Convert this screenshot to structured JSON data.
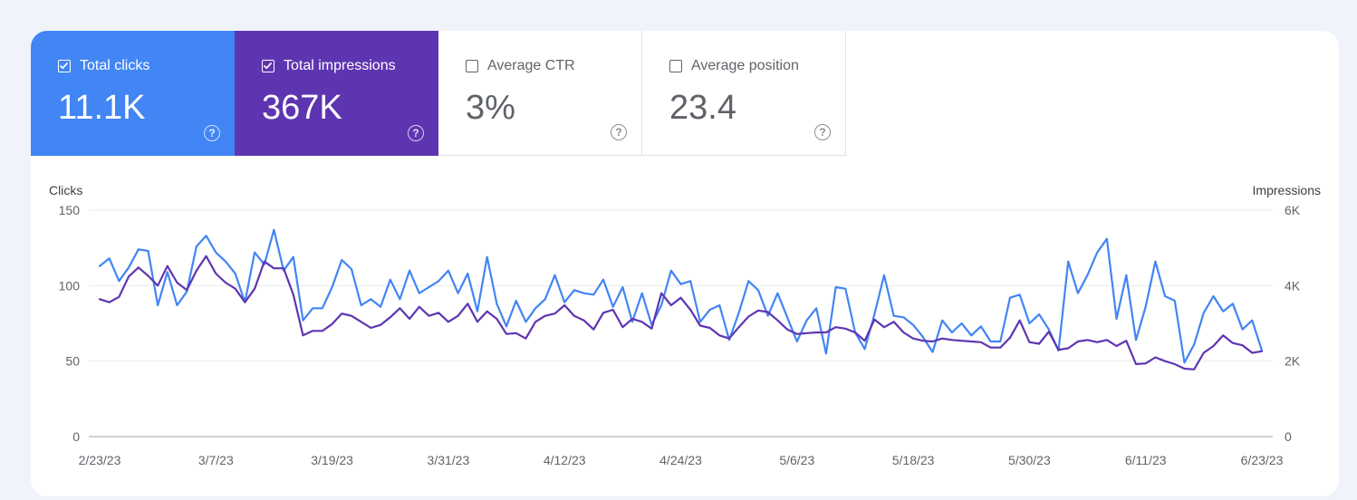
{
  "metrics": {
    "clicks": {
      "label": "Total clicks",
      "value": "11.1K",
      "checked": true
    },
    "impressions": {
      "label": "Total impressions",
      "value": "367K",
      "checked": true
    },
    "ctr": {
      "label": "Average CTR",
      "value": "3%",
      "checked": false
    },
    "position": {
      "label": "Average position",
      "value": "23.4",
      "checked": false
    },
    "help_glyph": "?"
  },
  "colors": {
    "clicks": "#4285f4",
    "impressions": "#5e35b1",
    "grid": "#e8eaed",
    "baseline": "#9aa0a6"
  },
  "chart_data": {
    "type": "line",
    "xlabel": "",
    "y_left_label": "Clicks",
    "y_right_label": "Impressions",
    "y_left_ticks": [
      "150",
      "100",
      "50",
      "0"
    ],
    "y_right_ticks": [
      "6K",
      "4K",
      "2K",
      "0"
    ],
    "y_left_range": [
      0,
      150
    ],
    "y_right_range": [
      0,
      6000
    ],
    "x_tick_labels": [
      "2/23/23",
      "3/7/23",
      "3/19/23",
      "3/31/23",
      "4/12/23",
      "4/24/23",
      "5/6/23",
      "5/18/23",
      "5/30/23",
      "6/11/23",
      "6/23/23"
    ],
    "grid": true,
    "series": [
      {
        "name": "Clicks",
        "axis": "left",
        "values": [
          113,
          118,
          103,
          112,
          124,
          123,
          87,
          109,
          87,
          96,
          126,
          133,
          122,
          116,
          108,
          89,
          122,
          114,
          137,
          110,
          119,
          77,
          85,
          85,
          99,
          117,
          111,
          87,
          91,
          86,
          104,
          91,
          110,
          95,
          99,
          103,
          110,
          95,
          108,
          83,
          119,
          88,
          73,
          90,
          76,
          85,
          91,
          107,
          89,
          97,
          95,
          94,
          104,
          86,
          99,
          76,
          95,
          74,
          87,
          110,
          101,
          103,
          76,
          84,
          87,
          64,
          82,
          103,
          97,
          80,
          95,
          79,
          63,
          77,
          85,
          55,
          99,
          98,
          69,
          58,
          81,
          107,
          80,
          79,
          74,
          66,
          56,
          77,
          69,
          75,
          67,
          73,
          63,
          63,
          92,
          94,
          75,
          81,
          71,
          57,
          116,
          95,
          107,
          122,
          131,
          78,
          107,
          64,
          86,
          116,
          93,
          90,
          49,
          61,
          82,
          93,
          83,
          88,
          71,
          77,
          57
        ]
      },
      {
        "name": "Impressions",
        "axis": "right",
        "values": [
          3640,
          3560,
          3700,
          4240,
          4480,
          4260,
          4000,
          4520,
          4080,
          3880,
          4400,
          4780,
          4320,
          4080,
          3920,
          3560,
          3920,
          4640,
          4460,
          4460,
          3760,
          2680,
          2800,
          2800,
          2980,
          3260,
          3200,
          3040,
          2880,
          2960,
          3160,
          3400,
          3120,
          3440,
          3200,
          3280,
          3040,
          3200,
          3520,
          3040,
          3320,
          3120,
          2720,
          2740,
          2600,
          3040,
          3200,
          3260,
          3480,
          3200,
          3080,
          2840,
          3280,
          3360,
          2900,
          3120,
          3040,
          2860,
          3800,
          3480,
          3680,
          3360,
          2940,
          2880,
          2680,
          2600,
          2900,
          3180,
          3340,
          3300,
          3080,
          2840,
          2720,
          2740,
          2760,
          2760,
          2900,
          2860,
          2760,
          2540,
          3100,
          2900,
          3040,
          2760,
          2600,
          2540,
          2520,
          2600,
          2560,
          2540,
          2520,
          2500,
          2360,
          2360,
          2620,
          3080,
          2500,
          2460,
          2780,
          2300,
          2340,
          2520,
          2560,
          2500,
          2560,
          2400,
          2540,
          1920,
          1940,
          2100,
          2000,
          1920,
          1800,
          1780,
          2220,
          2400,
          2680,
          2480,
          2420,
          2220,
          2260
        ]
      }
    ]
  }
}
